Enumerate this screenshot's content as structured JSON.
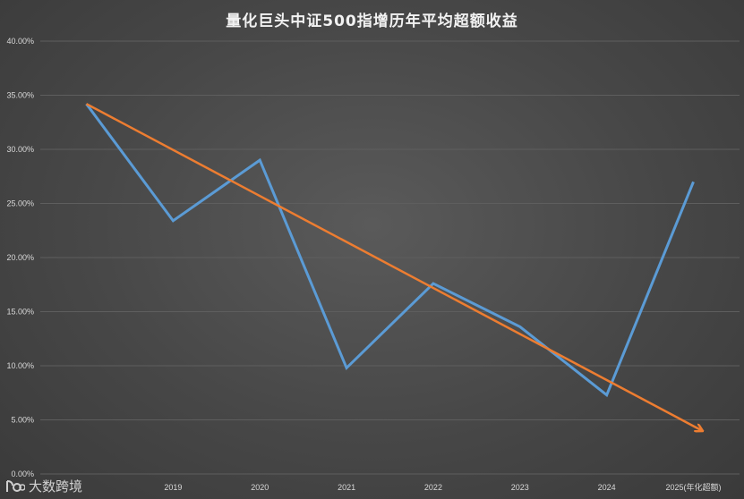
{
  "chart_data": {
    "type": "line",
    "title": "量化巨头中证500指增历年平均超额收益",
    "categories": [
      "",
      "2019",
      "2020",
      "2021",
      "2022",
      "2023",
      "2024",
      "2025(年化超额)"
    ],
    "y_ticks": [
      "0.00%",
      "5.00%",
      "10.00%",
      "15.00%",
      "20.00%",
      "25.00%",
      "30.00%",
      "35.00%",
      "40.00%"
    ],
    "ylim": [
      0,
      40
    ],
    "series": [
      {
        "values": [
          34.2,
          23.4,
          29.0,
          9.8,
          17.6,
          13.6,
          7.3,
          27.0
        ],
        "color": "#5b9bd5"
      }
    ],
    "trend_arrow": {
      "from": [
        0,
        34.2
      ],
      "to": [
        7.1,
        4.0
      ],
      "color": "#ed7d31"
    },
    "grid": true,
    "legend": "none"
  },
  "watermark": {
    "text": "大数跨境"
  }
}
